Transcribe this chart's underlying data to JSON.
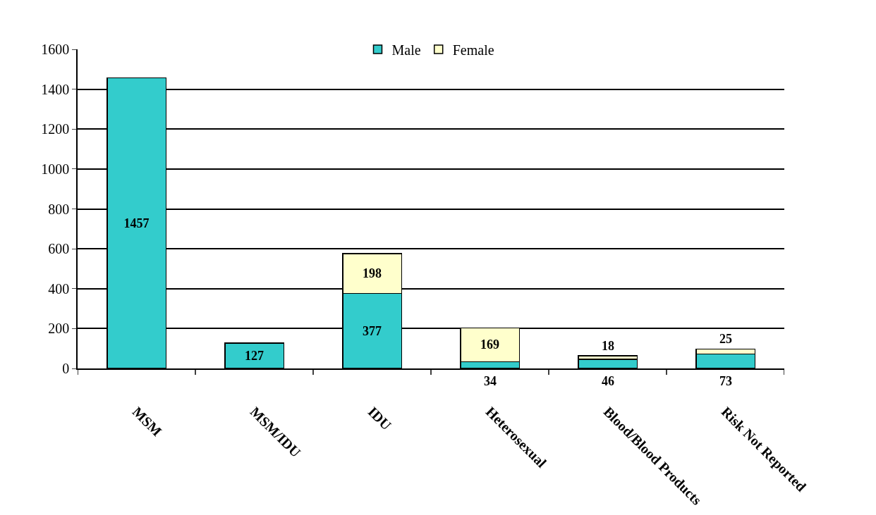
{
  "chart_data": {
    "type": "bar",
    "stacked": true,
    "categories": [
      "MSM",
      "MSM/IDU",
      "IDU",
      "Heterosexual",
      "Blood/Blood Products",
      "Risk Not Reported"
    ],
    "series": [
      {
        "name": "Male",
        "color": "#33cccc",
        "values": [
          1457,
          127,
          377,
          34,
          46,
          73
        ]
      },
      {
        "name": "Female",
        "color": "#ffffcc",
        "values": [
          null,
          null,
          198,
          169,
          18,
          25
        ]
      }
    ],
    "ylim": [
      0,
      1600
    ],
    "yticks": [
      0,
      200,
      400,
      600,
      800,
      1000,
      1200,
      1400,
      1600
    ],
    "grid": "y",
    "legend": "top",
    "data_labels": true
  }
}
